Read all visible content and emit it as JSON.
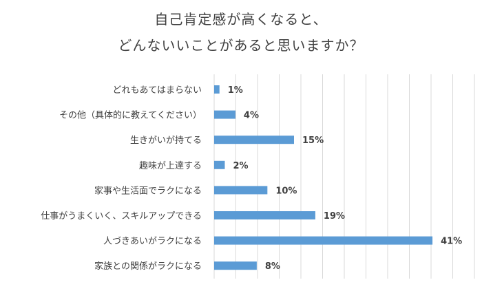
{
  "chart_data": {
    "type": "bar",
    "orientation": "horizontal",
    "title": [
      "自己肯定感が高くなると、",
      "どんないいことがあると思いますか？"
    ],
    "categories": [
      "どれもあてはまらない",
      "その他（具体的に教えてください）",
      "生きがいが持てる",
      "趣味が上達する",
      "家事や生活面でラクになる",
      "仕事がうまくいく、スキルアップできる",
      "人づきあいがラクになる",
      "家族との関係がラクになる"
    ],
    "values": [
      1,
      4,
      15,
      2,
      10,
      19,
      41,
      8
    ],
    "value_labels": [
      "1%",
      "4%",
      "15%",
      "2%",
      "10%",
      "19%",
      "41%",
      "8%"
    ],
    "xlim": [
      0,
      45
    ],
    "gridlines": "vertical",
    "colors": {
      "bar": "#5b9bd5",
      "grid": "#d9d9d9",
      "text": "#404040"
    }
  }
}
